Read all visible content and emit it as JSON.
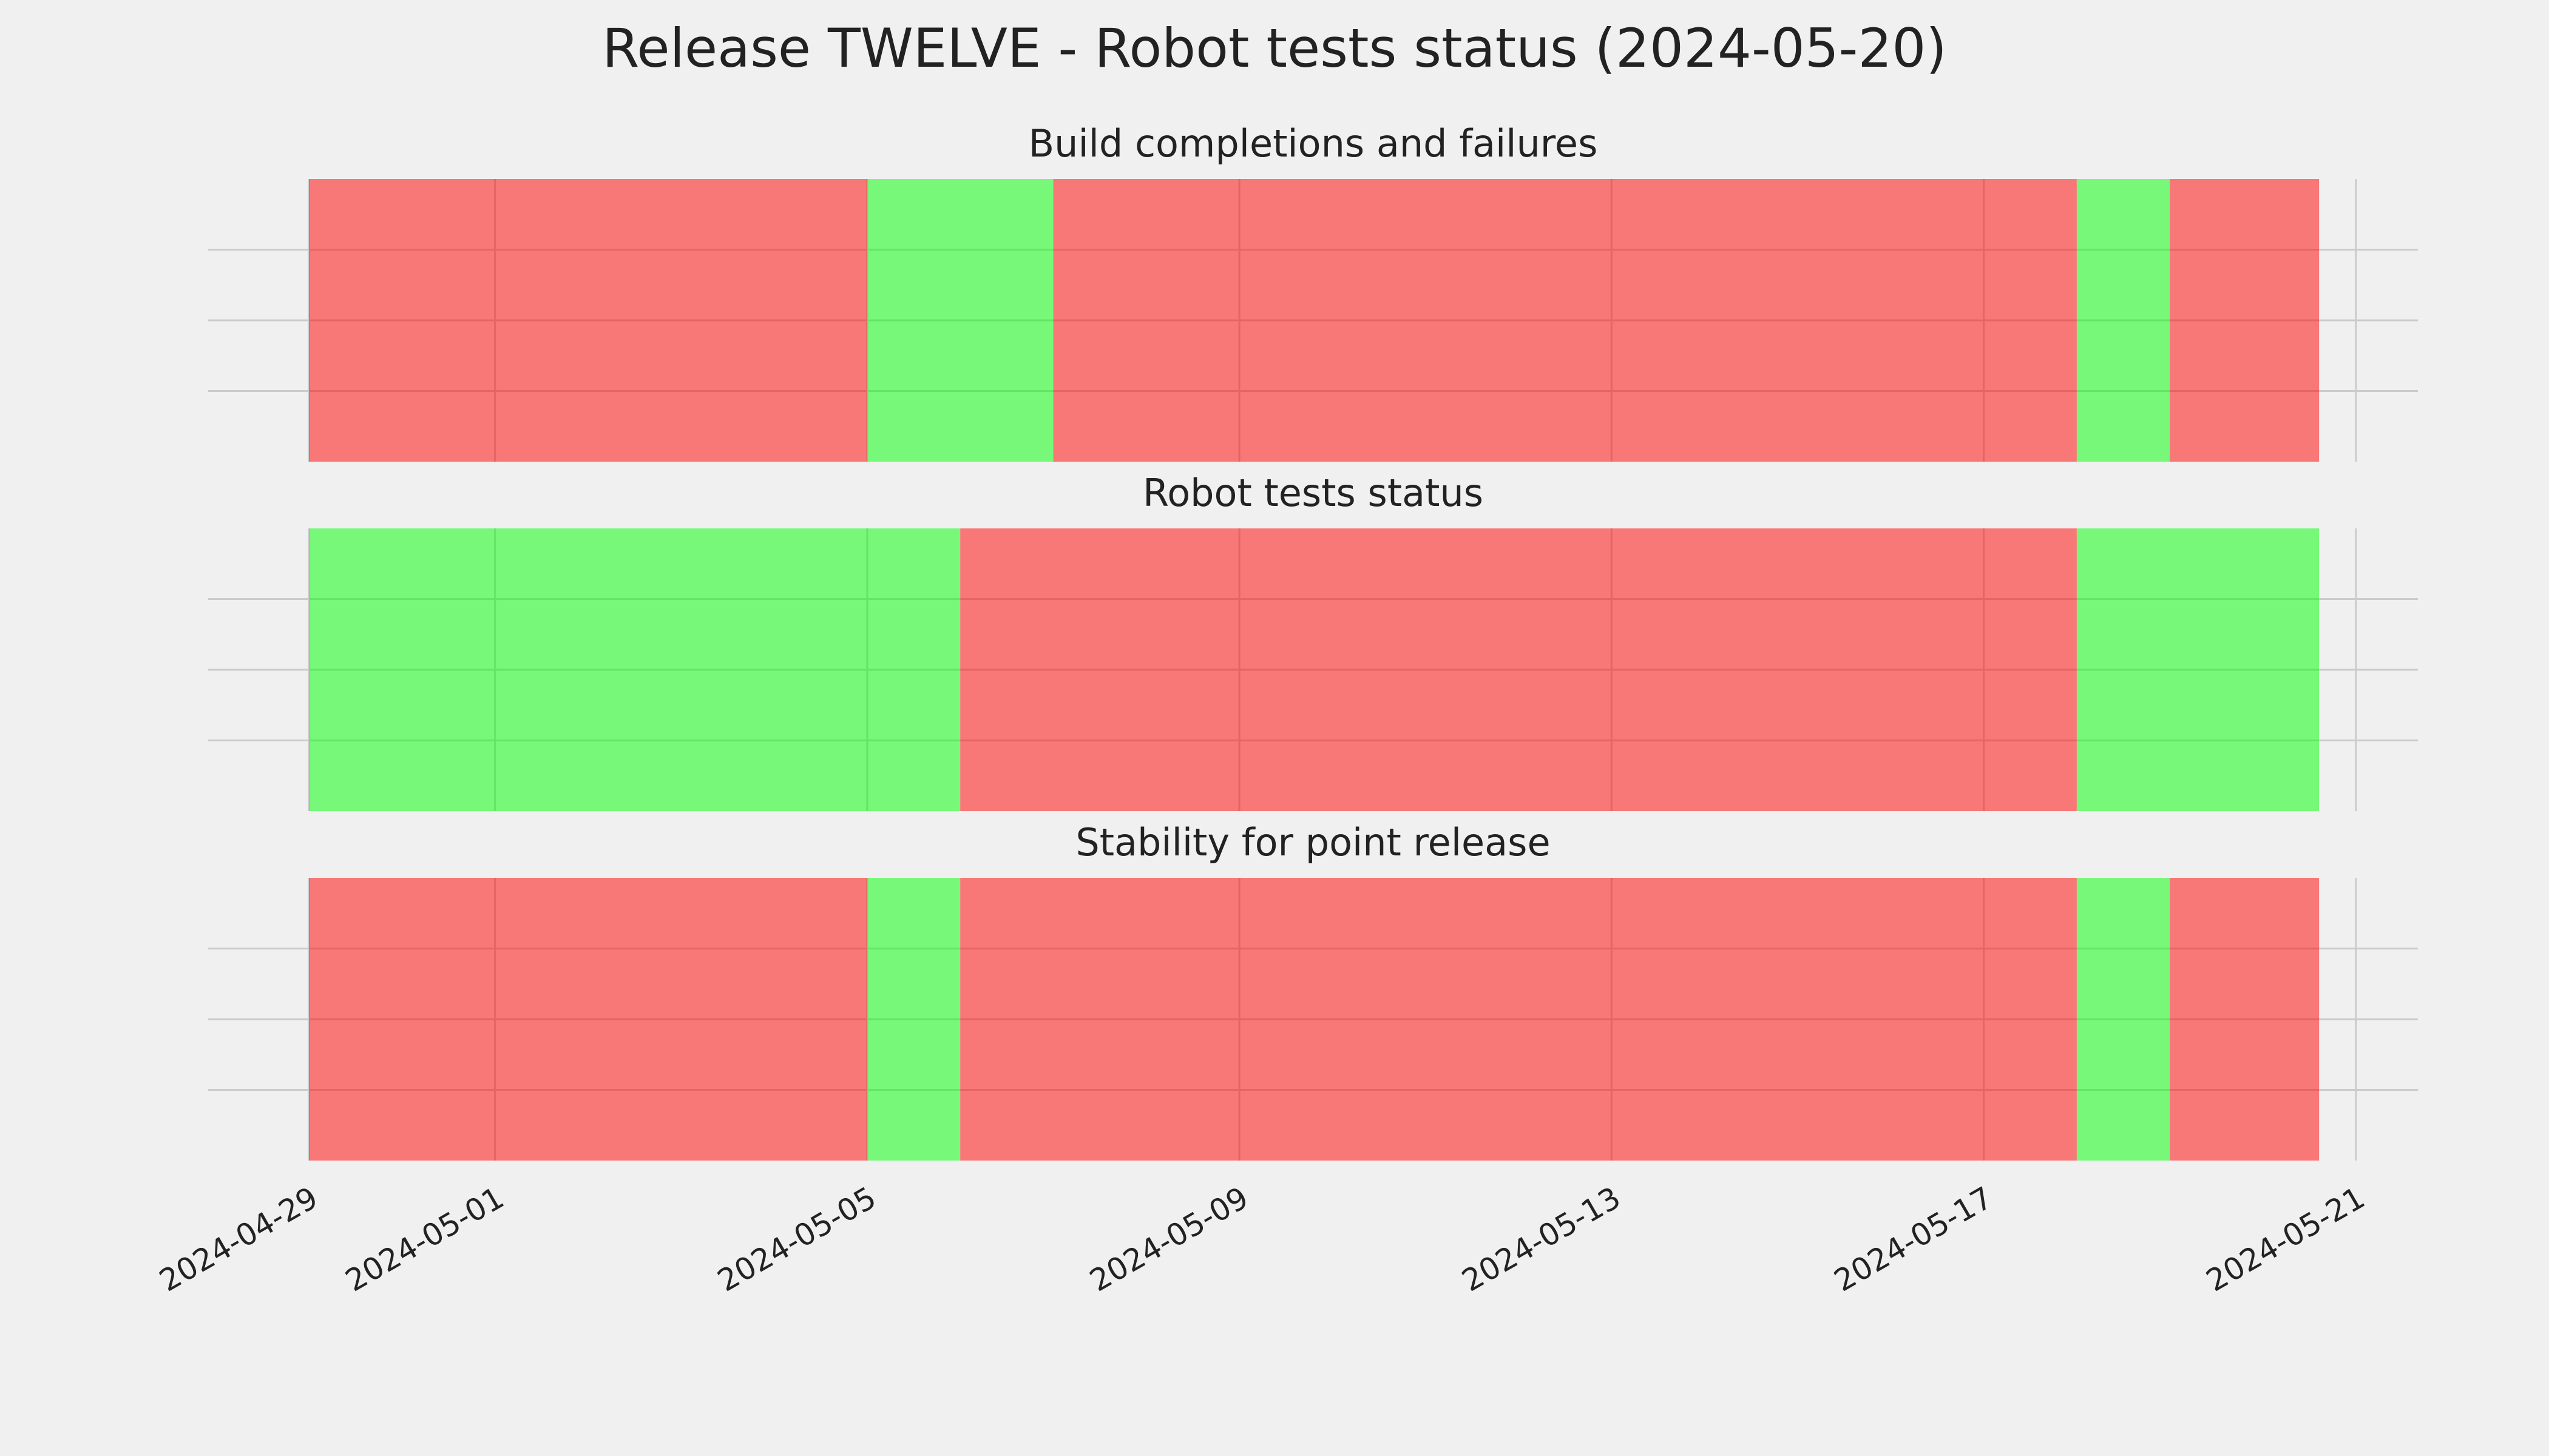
{
  "title": "Release TWELVE - Robot tests status (2024-05-20)",
  "chart_data": [
    {
      "type": "span",
      "title": "Build completions and failures",
      "spans": [
        {
          "start": "2024-04-29",
          "end": "2024-05-05",
          "color": "#ff0000"
        },
        {
          "start": "2024-05-05",
          "end": "2024-05-07",
          "color": "#00ff00"
        },
        {
          "start": "2024-05-07",
          "end": "2024-05-18",
          "color": "#ff0000"
        },
        {
          "start": "2024-05-18",
          "end": "2024-05-19",
          "color": "#00ff00"
        },
        {
          "start": "2024-05-19",
          "end": "2024-05-20T14:30Z",
          "color": "#ff0000"
        }
      ],
      "ylim": [
        0,
        1
      ],
      "yticks": [
        0.25,
        0.5,
        0.75
      ],
      "grid": true
    },
    {
      "type": "span",
      "title": "Robot tests status",
      "spans": [
        {
          "start": "2024-04-29",
          "end": "2024-05-06",
          "color": "#00ff00"
        },
        {
          "start": "2024-05-06",
          "end": "2024-05-18",
          "color": "#ff0000"
        },
        {
          "start": "2024-05-18",
          "end": "2024-05-20T14:30Z",
          "color": "#00ff00"
        }
      ],
      "ylim": [
        0,
        1
      ],
      "yticks": [
        0.25,
        0.5,
        0.75
      ],
      "grid": true
    },
    {
      "type": "span",
      "title": "Stability for point release",
      "spans": [
        {
          "start": "2024-04-29",
          "end": "2024-05-05",
          "color": "#ff0000"
        },
        {
          "start": "2024-05-05",
          "end": "2024-05-06",
          "color": "#00ff00"
        },
        {
          "start": "2024-05-06",
          "end": "2024-05-18",
          "color": "#ff0000"
        },
        {
          "start": "2024-05-18",
          "end": "2024-05-19",
          "color": "#00ff00"
        },
        {
          "start": "2024-05-19",
          "end": "2024-05-20T14:30Z",
          "color": "#ff0000"
        }
      ],
      "ylim": [
        0,
        1
      ],
      "yticks": [
        0.25,
        0.5,
        0.75
      ],
      "grid": true,
      "xlim": [
        "2024-04-27T22:00Z",
        "2024-05-21T16:00Z"
      ],
      "xticks": [
        "2024-04-29",
        "2024-05-01",
        "2024-05-05",
        "2024-05-09",
        "2024-05-13",
        "2024-05-17",
        "2024-05-21"
      ]
    }
  ]
}
